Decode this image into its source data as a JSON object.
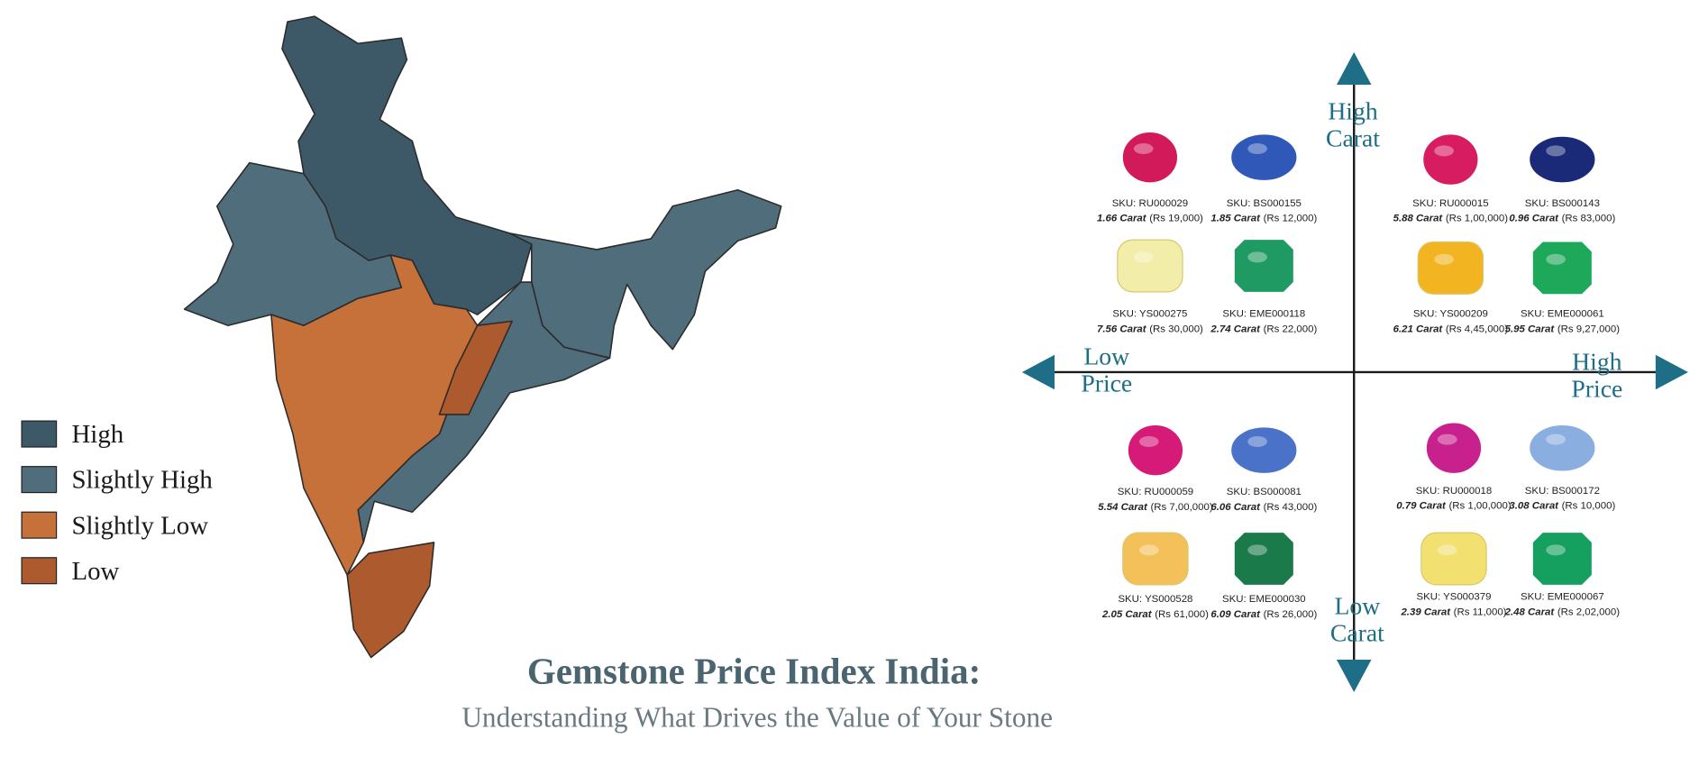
{
  "legend": [
    {
      "label": "High",
      "color": "#3d5866"
    },
    {
      "label": "Slightly High",
      "color": "#4f6d7a"
    },
    {
      "label": "Slightly Low",
      "color": "#c6703a"
    },
    {
      "label": "Low",
      "color": "#ad5a2e"
    }
  ],
  "title": "Gemstone Price Index India:",
  "subtitle": "Understanding What Drives the Value of Your Stone",
  "axes": {
    "top": [
      "High",
      "Carat"
    ],
    "bottom": [
      "Low",
      "Carat"
    ],
    "left": [
      "Low",
      "Price"
    ],
    "right": [
      "High",
      "Price"
    ]
  },
  "gems": [
    {
      "sku": "SKU: RU000029",
      "carat": "1.66 Carat",
      "price": "(Rs 19,000)",
      "color": "#d2195a"
    },
    {
      "sku": "SKU: BS000155",
      "carat": "1.85 Carat",
      "price": "(Rs 12,000)",
      "color": "#2f58b8"
    },
    {
      "sku": "SKU: YS000275",
      "carat": "7.56 Carat",
      "price": "(Rs 30,000)",
      "color": "#f2eeaa"
    },
    {
      "sku": "SKU: EME000118",
      "carat": "2.74 Carat",
      "price": "(Rs 22,000)",
      "color": "#1f9a62"
    },
    {
      "sku": "SKU: RU000015",
      "carat": "5.88 Carat",
      "price": "(Rs 1,00,000)",
      "color": "#d81c62"
    },
    {
      "sku": "SKU: BS000143",
      "carat": "0.96 Carat",
      "price": "(Rs 83,000)",
      "color": "#1a2a78"
    },
    {
      "sku": "SKU: YS000209",
      "carat": "6.21 Carat",
      "price": "(Rs 4,45,000)",
      "color": "#f2b420"
    },
    {
      "sku": "SKU: EME000061",
      "carat": "5.95 Carat",
      "price": "(Rs 9,27,000)",
      "color": "#1ea85a"
    },
    {
      "sku": "SKU: RU000059",
      "carat": "5.54 Carat",
      "price": "(Rs 7,00,000)",
      "color": "#d51a78"
    },
    {
      "sku": "SKU: BS000081",
      "carat": "6.06 Carat",
      "price": "(Rs 43,000)",
      "color": "#4a72c8"
    },
    {
      "sku": "SKU: YS000528",
      "carat": "2.05 Carat",
      "price": "(Rs 61,000)",
      "color": "#f4c05a"
    },
    {
      "sku": "SKU: EME000030",
      "carat": "6.09 Carat",
      "price": "(Rs 26,000)",
      "color": "#1b7a4a"
    },
    {
      "sku": "SKU: RU000018",
      "carat": "0.79 Carat",
      "price": "(Rs 1,00,000)",
      "color": "#c8208c"
    },
    {
      "sku": "SKU: BS000172",
      "carat": "3.08 Carat",
      "price": "(Rs 10,000)",
      "color": "#8aaee0"
    },
    {
      "sku": "SKU: YS000379",
      "carat": "2.39 Carat",
      "price": "(Rs 11,000)",
      "color": "#f2e070"
    },
    {
      "sku": "SKU: EME000067",
      "carat": "2.48 Carat",
      "price": "(Rs 2,02,000)",
      "color": "#16a060"
    }
  ]
}
